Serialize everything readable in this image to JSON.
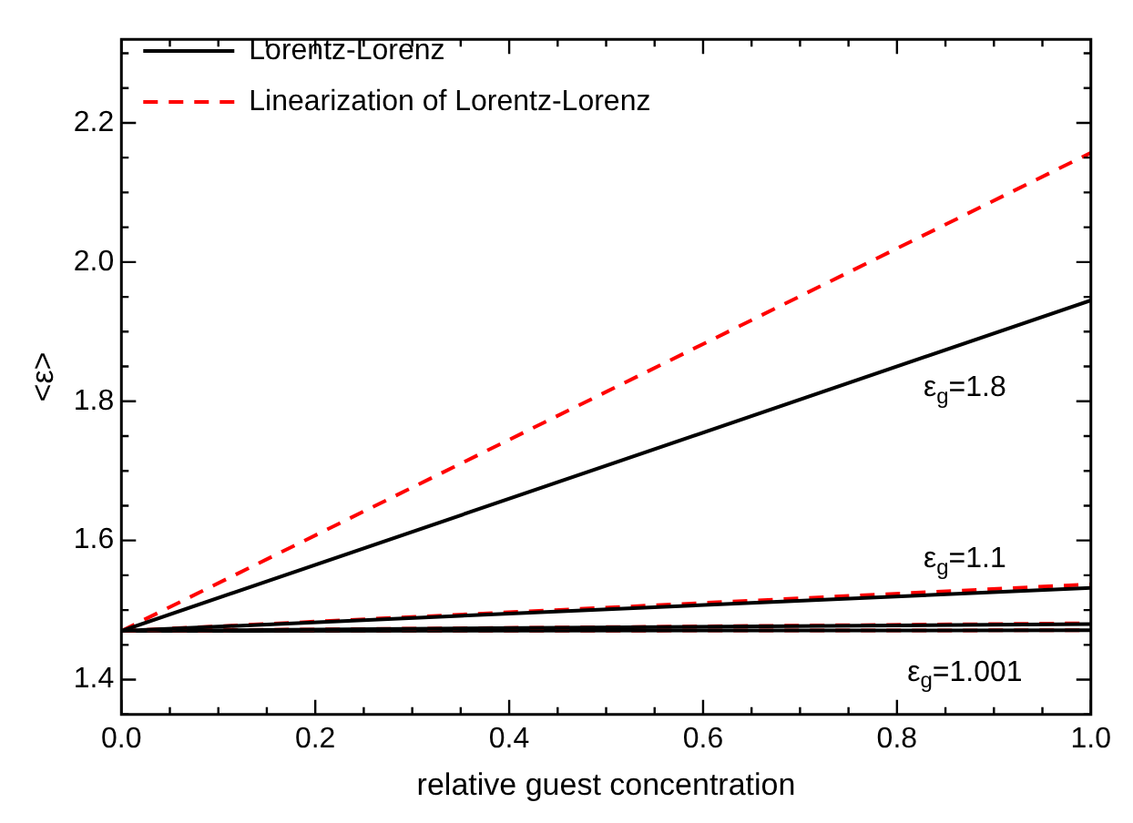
{
  "chart_data": {
    "type": "line",
    "xlabel": "relative guest concentration",
    "ylabel": "<ε>",
    "xlim": [
      0,
      1
    ],
    "ylim": [
      1.35,
      2.32
    ],
    "xticks": [
      {
        "value": 0,
        "label": "0.0"
      },
      {
        "value": 0.05,
        "label": null
      },
      {
        "value": 0.1,
        "label": null
      },
      {
        "value": 0.15,
        "label": null
      },
      0.2,
      {
        "value": 0.25,
        "label": null
      },
      {
        "value": 0.3,
        "label": null
      },
      {
        "value": 0.35,
        "label": null
      },
      0.4,
      {
        "value": 0.45,
        "label": null
      },
      {
        "value": 0.5,
        "label": null
      },
      {
        "value": 0.55,
        "label": null
      },
      0.6,
      {
        "value": 0.65,
        "label": null
      },
      {
        "value": 0.7,
        "label": null
      },
      {
        "value": 0.75,
        "label": null
      },
      0.8,
      {
        "value": 0.85,
        "label": null
      },
      {
        "value": 0.9,
        "label": null
      },
      {
        "value": 0.95,
        "label": null
      },
      {
        "value": 1,
        "label": "1.0"
      }
    ],
    "yticks": [
      {
        "value": 1.35,
        "label": null
      },
      1.4,
      {
        "value": 1.45,
        "label": null
      },
      {
        "value": 1.5,
        "label": null
      },
      {
        "value": 1.55,
        "label": null
      },
      1.6,
      {
        "value": 1.65,
        "label": null
      },
      {
        "value": 1.7,
        "label": null
      },
      {
        "value": 1.75,
        "label": null
      },
      1.8,
      {
        "value": 1.85,
        "label": null
      },
      {
        "value": 1.9,
        "label": null
      },
      {
        "value": 1.95,
        "label": null
      },
      {
        "value": 2,
        "label": "2.0"
      },
      {
        "value": 2.05,
        "label": null
      },
      {
        "value": 2.1,
        "label": null
      },
      {
        "value": 2.15,
        "label": null
      },
      2.2,
      {
        "value": 2.25,
        "label": null
      },
      {
        "value": 2.3,
        "label": null
      }
    ],
    "x": [
      0,
      1
    ],
    "grid": false,
    "legend": "top left",
    "marker": "none",
    "series": [
      {
        "name": "Lorentz-Lorenz",
        "color": "#000000",
        "line_style": "solid",
        "values": [
          1.47,
          1.945
        ]
      },
      {
        "name": "Linearization of Lorentz-Lorenz",
        "color": "#ff0000",
        "line_style": "dashed",
        "values": [
          1.47,
          2.157
        ]
      },
      {
        "color": "#000000",
        "line_style": "solid",
        "values": [
          1.47,
          1.532
        ]
      },
      {
        "color": "#ff0000",
        "line_style": "dashed",
        "values": [
          1.47,
          1.537
        ]
      },
      {
        "color": "#000000",
        "line_style": "solid",
        "values": [
          1.47,
          1.48
        ]
      },
      {
        "color": "#ff0000",
        "line_style": "dashed",
        "values": [
          1.47,
          1.481
        ]
      },
      {
        "color": "#000000",
        "line_style": "solid",
        "values": [
          1.47,
          1.471
        ]
      },
      {
        "color": "#ff0000",
        "line_style": "dashed",
        "values": [
          1.47,
          1.471
        ]
      }
    ],
    "annotations": [
      "ε$_{g}$=1.8",
      "ε$_{g}$=1.1",
      "ε$_{g}$=1.001"
    ]
  }
}
